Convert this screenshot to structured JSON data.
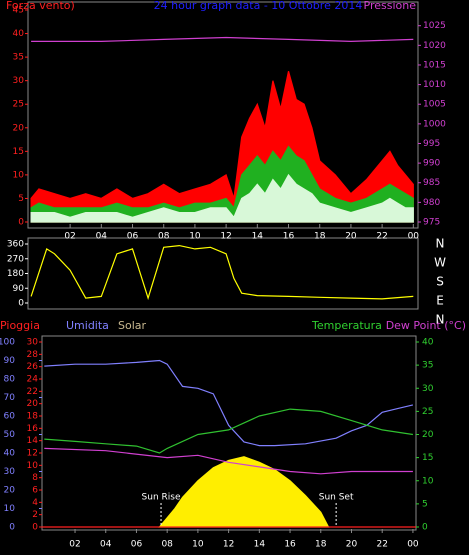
{
  "chart_data": [
    {
      "type": "wind",
      "title": "24 hour graph data - 10 Ottobre 2014",
      "y_label": "Forza vento)",
      "y2_label": "Pressione",
      "xlim": [
        -0.7,
        24.3
      ],
      "ylim": [
        0,
        45
      ],
      "y2lim": [
        975,
        1029
      ],
      "xticks": [
        {
          "value": 2,
          "label": "02"
        },
        {
          "value": 4,
          "label": "04"
        },
        {
          "value": 6,
          "label": "06"
        },
        {
          "value": 8,
          "label": "08"
        },
        10,
        12,
        14,
        16,
        18,
        20,
        22,
        {
          "value": 24,
          "label": "00"
        }
      ],
      "yticks": [
        0,
        5,
        10,
        15,
        20,
        25,
        30,
        35,
        40,
        45
      ],
      "y2ticks": [
        975,
        980,
        985,
        990,
        995,
        1000,
        1005,
        1010,
        1015,
        1020,
        1025
      ],
      "series": [
        {
          "style": "area",
          "color": "#ff0000",
          "x": [
            -0.5,
            0,
            1,
            2,
            3,
            4,
            5,
            6,
            7,
            8,
            9,
            10,
            11,
            12,
            12.5,
            13,
            13.5,
            14,
            14.5,
            15,
            15.5,
            16,
            16.5,
            17,
            17.5,
            18,
            19,
            20,
            21,
            22,
            22.5,
            23,
            23.5,
            24
          ],
          "values": [
            5,
            7,
            6,
            5,
            6,
            5,
            7,
            5,
            6,
            8,
            6,
            7,
            8,
            10,
            5,
            18,
            22,
            25,
            20,
            30,
            24,
            32,
            26,
            25,
            20,
            13,
            10,
            6,
            9,
            13,
            15,
            12,
            10,
            8
          ]
        },
        {
          "style": "area",
          "color": "#20b020",
          "x": [
            -0.5,
            0,
            1,
            2,
            3,
            4,
            5,
            6,
            7,
            8,
            9,
            10,
            11,
            12,
            12.5,
            13,
            13.5,
            14,
            14.5,
            15,
            15.5,
            16,
            16.5,
            17,
            17.5,
            18,
            19,
            20,
            21,
            22,
            22.5,
            23,
            23.5,
            24
          ],
          "values": [
            3,
            4,
            3,
            3,
            3,
            3,
            4,
            3,
            3,
            4,
            3,
            4,
            4,
            5,
            3,
            10,
            12,
            14,
            12,
            15,
            13,
            16,
            14,
            13,
            10,
            7,
            5,
            4,
            5,
            7,
            8,
            7,
            6,
            5
          ]
        },
        {
          "style": "area",
          "color": "#d8f8d8",
          "x": [
            -0.5,
            0,
            1,
            2,
            3,
            4,
            5,
            6,
            7,
            8,
            9,
            10,
            11,
            12,
            12.5,
            13,
            13.5,
            14,
            14.5,
            15,
            15.5,
            16,
            16.5,
            17,
            17.5,
            18,
            19,
            20,
            21,
            22,
            22.5,
            23,
            23.5,
            24
          ],
          "values": [
            2,
            2,
            2,
            1,
            2,
            2,
            2,
            1,
            2,
            3,
            2,
            2,
            3,
            3,
            1,
            5,
            6,
            8,
            6,
            9,
            7,
            10,
            8,
            7,
            6,
            4,
            3,
            2,
            3,
            4,
            5,
            4,
            3,
            3
          ]
        },
        {
          "style": "line",
          "axis": "y2",
          "color": "#d040d0",
          "x": [
            -0.5,
            4,
            8,
            12,
            16,
            20,
            24
          ],
          "values": [
            1021,
            1021,
            1021.5,
            1022,
            1021.5,
            1021,
            1021.5
          ]
        }
      ]
    },
    {
      "type": "direction",
      "xlim": [
        -0.7,
        24.3
      ],
      "ylim": [
        0,
        360
      ],
      "yticks": [
        0,
        90,
        180,
        270,
        360
      ],
      "compass": [
        "N",
        "W",
        "S",
        "E",
        "N"
      ],
      "series": [
        {
          "style": "line",
          "color": "#ffff00",
          "x": [
            -0.5,
            0.5,
            1,
            2,
            3,
            4,
            5,
            6,
            7,
            8,
            9,
            10,
            11,
            12,
            12.5,
            13,
            14,
            16,
            18,
            20,
            22,
            24
          ],
          "values": [
            40,
            330,
            300,
            200,
            30,
            40,
            300,
            330,
            30,
            340,
            350,
            330,
            340,
            300,
            150,
            60,
            45,
            40,
            35,
            30,
            25,
            40
          ]
        }
      ]
    },
    {
      "type": "weather",
      "rain_label": "Pioggia",
      "humidity_label": "Umidita",
      "solar_label": "Solar",
      "temp_label": "Temperatura",
      "dew_label": "Dew Point (°C)",
      "xlim": [
        -0.15,
        24.2
      ],
      "ylim": [
        0,
        100
      ],
      "y3lim": [
        0,
        30
      ],
      "y2lim": [
        0,
        40
      ],
      "xticks": [
        {
          "value": 2,
          "label": "02"
        },
        {
          "value": 4,
          "label": "04"
        },
        {
          "value": 6,
          "label": "06"
        },
        {
          "value": 8,
          "label": "08"
        },
        10,
        12,
        14,
        16,
        18,
        20,
        22,
        {
          "value": 24,
          "label": "00"
        }
      ],
      "yticks": [
        0,
        10,
        20,
        30,
        40,
        50,
        60,
        70,
        80,
        90,
        100
      ],
      "y3ticks": [
        0,
        2,
        4,
        6,
        8,
        10,
        12,
        14,
        16,
        18,
        20,
        22,
        24,
        26,
        28,
        30
      ],
      "y2ticks": [
        0,
        5,
        10,
        15,
        20,
        25,
        30,
        35,
        40
      ],
      "series": [
        {
          "style": "area",
          "color": "#ffee00",
          "x": [
            7.5,
            8.5,
            9,
            10,
            11,
            12,
            13,
            14,
            15,
            16,
            17,
            18,
            18.5
          ],
          "values": [
            0,
            10,
            16,
            25,
            32,
            36,
            38,
            35,
            31,
            25,
            17,
            8,
            0
          ]
        },
        {
          "style": "line",
          "color": "#8080ff",
          "x": [
            0,
            2,
            4,
            6,
            7.5,
            8,
            9,
            10,
            11,
            12,
            13,
            14,
            15,
            17,
            19,
            20,
            21,
            22,
            23,
            24
          ],
          "values": [
            87,
            88,
            88,
            89,
            90,
            88,
            76,
            75,
            72,
            55,
            46,
            44,
            44,
            45,
            48,
            52,
            55,
            62,
            64,
            66
          ]
        },
        {
          "style": "line",
          "axis": "y2",
          "color": "#30c030",
          "x": [
            0,
            2,
            4,
            6,
            7.5,
            8,
            10,
            12,
            14,
            16,
            18,
            20,
            22,
            24
          ],
          "values": [
            19,
            18.5,
            18,
            17.5,
            16,
            17,
            20,
            21,
            24,
            25.5,
            25,
            23,
            21,
            20
          ]
        },
        {
          "style": "line",
          "axis": "y2",
          "color": "#d040d0",
          "x": [
            0,
            4,
            8,
            10,
            12,
            14,
            16,
            18,
            20,
            24
          ],
          "values": [
            17,
            16.5,
            15,
            15.5,
            14,
            13,
            12,
            11.5,
            12,
            12
          ]
        },
        {
          "style": "line",
          "axis": "y3",
          "color": "#ff2020",
          "x": [
            -0.15,
            24.2
          ],
          "values": [
            0,
            0
          ]
        }
      ],
      "annotations": [
        {
          "text": "Sun Rise",
          "x": 7.6
        },
        {
          "text": "Sun Set",
          "x": 19
        }
      ]
    }
  ]
}
